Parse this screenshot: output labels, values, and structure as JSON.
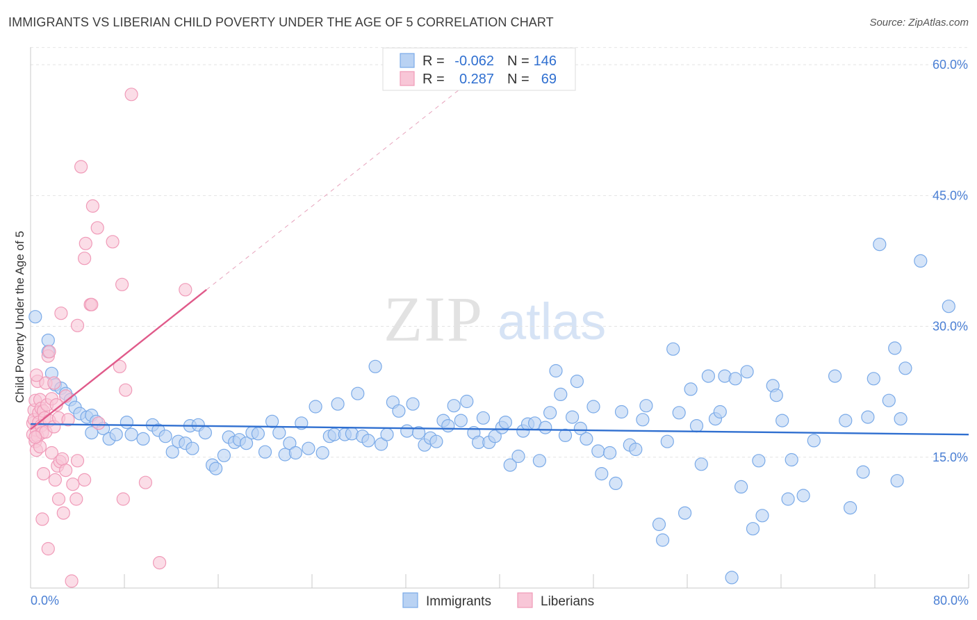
{
  "chart_data": {
    "type": "scatter",
    "title": "IMMIGRANTS VS LIBERIAN CHILD POVERTY UNDER THE AGE OF 5 CORRELATION CHART",
    "source": "Source: ZipAtlas.com",
    "watermark": {
      "zip": "ZIP",
      "atlas": "atlas"
    },
    "ylabel": "Child Poverty Under the Age of 5",
    "xlabel": "",
    "xlim": [
      0,
      80
    ],
    "ylim": [
      0,
      62
    ],
    "x_tick_labels": {
      "left": "0.0%",
      "right": "80.0%"
    },
    "y_ticks": [
      {
        "value": 15,
        "label": "15.0%"
      },
      {
        "value": 30,
        "label": "30.0%"
      },
      {
        "value": 45,
        "label": "45.0%"
      },
      {
        "value": 60,
        "label": "60.0%"
      }
    ],
    "grid": true,
    "legend_position": "top-center",
    "series": [
      {
        "name": "Immigrants",
        "color": "#7aaae8",
        "fill": "#b9d2f3",
        "line_color": "#2f6fd0",
        "R_label": "R =",
        "R": "-0.062",
        "N_label": "N =",
        "N": "146",
        "trend": {
          "x": [
            0,
            80
          ],
          "y": [
            18.8,
            17.6
          ]
        },
        "points": [
          [
            0.4,
            31.1
          ],
          [
            1.5,
            28.4
          ],
          [
            1.5,
            27.1
          ],
          [
            1.8,
            24.6
          ],
          [
            2.1,
            23.3
          ],
          [
            2.6,
            22.9
          ],
          [
            3,
            22.3
          ],
          [
            3.4,
            21.6
          ],
          [
            3.8,
            20.7
          ],
          [
            4.2,
            20
          ],
          [
            4.8,
            19.6
          ],
          [
            5.2,
            19.8
          ],
          [
            5.6,
            19.1
          ],
          [
            5.2,
            17.8
          ],
          [
            6.2,
            18.3
          ],
          [
            6.7,
            17.1
          ],
          [
            7.3,
            17.6
          ],
          [
            8.2,
            19
          ],
          [
            8.6,
            17.6
          ],
          [
            9.6,
            17.1
          ],
          [
            10.4,
            18.7
          ],
          [
            10.9,
            18.1
          ],
          [
            11.5,
            17.4
          ],
          [
            12.1,
            15.6
          ],
          [
            12.6,
            16.8
          ],
          [
            13.2,
            16.6
          ],
          [
            13.8,
            16
          ],
          [
            13.6,
            18.6
          ],
          [
            14.3,
            18.7
          ],
          [
            14.9,
            17.8
          ],
          [
            15.5,
            14.1
          ],
          [
            15.8,
            13.7
          ],
          [
            16.5,
            15.2
          ],
          [
            16.9,
            17.3
          ],
          [
            17.4,
            16.7
          ],
          [
            17.8,
            17
          ],
          [
            18.4,
            16.6
          ],
          [
            18.9,
            17.8
          ],
          [
            19.4,
            17.7
          ],
          [
            20,
            15.6
          ],
          [
            20.6,
            19.1
          ],
          [
            21.2,
            17.8
          ],
          [
            21.7,
            15.3
          ],
          [
            22.1,
            16.6
          ],
          [
            22.6,
            15.5
          ],
          [
            23.1,
            18.9
          ],
          [
            23.7,
            16
          ],
          [
            24.3,
            20.8
          ],
          [
            24.9,
            15.5
          ],
          [
            25.5,
            17.4
          ],
          [
            25.9,
            17.6
          ],
          [
            26.2,
            21.1
          ],
          [
            26.8,
            17.6
          ],
          [
            27.4,
            17.7
          ],
          [
            27.9,
            22.3
          ],
          [
            28.3,
            17.4
          ],
          [
            28.8,
            16.9
          ],
          [
            29.4,
            25.4
          ],
          [
            29.9,
            16.5
          ],
          [
            30.4,
            17.6
          ],
          [
            30.9,
            21.3
          ],
          [
            31.4,
            20.3
          ],
          [
            32.1,
            18
          ],
          [
            32.6,
            21.1
          ],
          [
            33.1,
            17.8
          ],
          [
            33.6,
            16.4
          ],
          [
            34.1,
            17.2
          ],
          [
            34.6,
            16.8
          ],
          [
            35.2,
            19.2
          ],
          [
            35.6,
            18.6
          ],
          [
            36.1,
            20.9
          ],
          [
            36.7,
            19.2
          ],
          [
            37.2,
            21.4
          ],
          [
            37.8,
            17.8
          ],
          [
            38.2,
            16.7
          ],
          [
            38.6,
            19.5
          ],
          [
            39.1,
            16.7
          ],
          [
            39.6,
            17.4
          ],
          [
            40.2,
            18.4
          ],
          [
            40.5,
            19
          ],
          [
            40.9,
            14.1
          ],
          [
            41.6,
            15.1
          ],
          [
            42,
            18
          ],
          [
            42.4,
            18.8
          ],
          [
            43,
            18.9
          ],
          [
            43.4,
            14.6
          ],
          [
            43.9,
            18.4
          ],
          [
            44.3,
            20.1
          ],
          [
            44.8,
            24.9
          ],
          [
            45.2,
            22.2
          ],
          [
            45.6,
            17.5
          ],
          [
            46.2,
            19.6
          ],
          [
            46.6,
            23.7
          ],
          [
            46.9,
            18.3
          ],
          [
            47.4,
            17.1
          ],
          [
            48,
            20.8
          ],
          [
            48.4,
            15.7
          ],
          [
            48.7,
            13.1
          ],
          [
            49.4,
            15.5
          ],
          [
            49.9,
            12
          ],
          [
            50.4,
            20.2
          ],
          [
            51.1,
            16.4
          ],
          [
            51.6,
            15.9
          ],
          [
            52.2,
            19.3
          ],
          [
            52.5,
            20.9
          ],
          [
            53.6,
            7.3
          ],
          [
            53.9,
            5.5
          ],
          [
            54.3,
            16.8
          ],
          [
            54.8,
            27.4
          ],
          [
            55.3,
            20.1
          ],
          [
            55.8,
            8.6
          ],
          [
            56.3,
            22.8
          ],
          [
            56.8,
            18.6
          ],
          [
            57.2,
            14.2
          ],
          [
            57.8,
            24.3
          ],
          [
            58.4,
            19.4
          ],
          [
            58.8,
            20.2
          ],
          [
            59.2,
            24.3
          ],
          [
            59.8,
            1.2
          ],
          [
            60.1,
            24
          ],
          [
            60.6,
            11.6
          ],
          [
            61.1,
            24.8
          ],
          [
            61.6,
            6.8
          ],
          [
            62.1,
            14.6
          ],
          [
            62.4,
            8.3
          ],
          [
            63.3,
            23.2
          ],
          [
            63.6,
            22.1
          ],
          [
            64.1,
            19.2
          ],
          [
            64.6,
            10.2
          ],
          [
            64.9,
            14.7
          ],
          [
            65.9,
            10.6
          ],
          [
            66.8,
            16.9
          ],
          [
            68.6,
            24.3
          ],
          [
            69.5,
            19.2
          ],
          [
            69.9,
            9.2
          ],
          [
            71,
            13.3
          ],
          [
            71.4,
            19.6
          ],
          [
            71.9,
            24
          ],
          [
            73.2,
            21.5
          ],
          [
            73.7,
            27.5
          ],
          [
            73.9,
            12.3
          ],
          [
            74.2,
            19.4
          ],
          [
            74.6,
            25.2
          ],
          [
            75.9,
            37.5
          ],
          [
            78.3,
            32.3
          ],
          [
            72.4,
            39.4
          ]
        ]
      },
      {
        "name": "Liberians",
        "color": "#f09ab8",
        "fill": "#f8c6d7",
        "line_color": "#e05a8a",
        "R_label": "R =",
        "R": "0.287",
        "N_label": "N =",
        "N": "69",
        "trend": {
          "x": [
            0,
            15
          ],
          "y": [
            18.2,
            34.2
          ]
        },
        "trend_extension": {
          "x": [
            15,
            40
          ],
          "y": [
            34.2,
            60.8
          ]
        },
        "points": [
          [
            0.2,
            18.9
          ],
          [
            0.2,
            17.6
          ],
          [
            0.3,
            20.4
          ],
          [
            0.3,
            19.3
          ],
          [
            0.4,
            16.8
          ],
          [
            0.4,
            21.5
          ],
          [
            0.5,
            18.1
          ],
          [
            0.5,
            15.8
          ],
          [
            0.6,
            23.7
          ],
          [
            0.6,
            17.4
          ],
          [
            0.7,
            20.1
          ],
          [
            0.7,
            19
          ],
          [
            0.8,
            21.6
          ],
          [
            0.8,
            16.2
          ],
          [
            0.9,
            18.6
          ],
          [
            0.9,
            20.6
          ],
          [
            1,
            17.8
          ],
          [
            1,
            7.9
          ],
          [
            1.1,
            13.1
          ],
          [
            1.1,
            20.3
          ],
          [
            1.2,
            19.5
          ],
          [
            1.3,
            17.9
          ],
          [
            1.3,
            23.5
          ],
          [
            1.4,
            21
          ],
          [
            1.5,
            4.5
          ],
          [
            1.5,
            26.6
          ],
          [
            1.6,
            19.2
          ],
          [
            1.6,
            27.1
          ],
          [
            1.8,
            21.7
          ],
          [
            1.8,
            15.5
          ],
          [
            2,
            23.5
          ],
          [
            2,
            18.5
          ],
          [
            2.1,
            12.4
          ],
          [
            2.2,
            21
          ],
          [
            2.3,
            14
          ],
          [
            2.4,
            10.2
          ],
          [
            2.4,
            19.5
          ],
          [
            2.5,
            14.5
          ],
          [
            2.6,
            31.5
          ],
          [
            2.7,
            14.8
          ],
          [
            2.8,
            8.6
          ],
          [
            3,
            13.5
          ],
          [
            3,
            22
          ],
          [
            3.2,
            19.3
          ],
          [
            3.5,
            0.8
          ],
          [
            3.6,
            11.9
          ],
          [
            3.9,
            10.2
          ],
          [
            4,
            14.6
          ],
          [
            4,
            30.1
          ],
          [
            4.3,
            48.3
          ],
          [
            4.6,
            12.4
          ],
          [
            4.7,
            39.5
          ],
          [
            4.6,
            37.8
          ],
          [
            5.1,
            32.5
          ],
          [
            5.2,
            32.5
          ],
          [
            5.3,
            43.8
          ],
          [
            5.8,
            18.9
          ],
          [
            5.7,
            41.3
          ],
          [
            7,
            39.7
          ],
          [
            7.6,
            25.4
          ],
          [
            7.8,
            34.8
          ],
          [
            7.9,
            10.2
          ],
          [
            8.1,
            22.7
          ],
          [
            8.6,
            56.6
          ],
          [
            9.8,
            12.1
          ],
          [
            11,
            2.9
          ],
          [
            13.2,
            34.2
          ],
          [
            0.4,
            17.3
          ],
          [
            0.5,
            24.4
          ]
        ]
      }
    ]
  }
}
